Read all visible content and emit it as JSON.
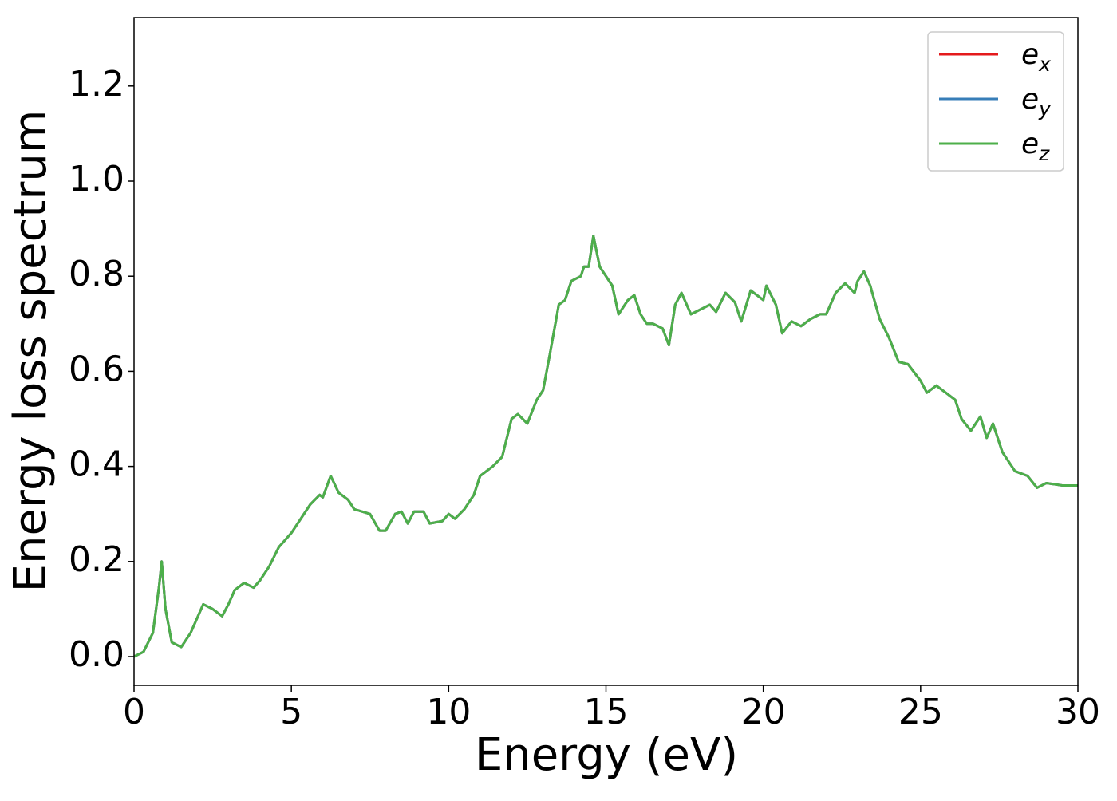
{
  "chart_data": {
    "type": "line",
    "xlabel": "Energy (eV)",
    "ylabel": "Energy loss spectrum",
    "xlim": [
      0,
      30
    ],
    "ylim": [
      -0.0604,
      1.344
    ],
    "xticks": [
      0,
      5,
      10,
      15,
      20,
      25,
      30
    ],
    "yticks": [
      {
        "value": 0,
        "label": "0.0"
      },
      0.2,
      0.4,
      0.6,
      0.8,
      {
        "value": 1,
        "label": "1.0"
      },
      1.2
    ],
    "legend": "upper right",
    "x": [
      0,
      0.3,
      0.6,
      0.8,
      0.88,
      1.0,
      1.2,
      1.5,
      1.8,
      2.2,
      2.5,
      2.8,
      3.0,
      3.2,
      3.5,
      3.8,
      4.0,
      4.3,
      4.6,
      5.0,
      5.3,
      5.6,
      5.9,
      6.0,
      6.25,
      6.5,
      6.8,
      7.0,
      7.5,
      7.8,
      8.0,
      8.3,
      8.5,
      8.7,
      8.9,
      9.2,
      9.4,
      9.8,
      10.0,
      10.2,
      10.5,
      10.8,
      11.0,
      11.4,
      11.7,
      12.0,
      12.2,
      12.5,
      12.8,
      13.0,
      13.2,
      13.5,
      13.7,
      13.9,
      14.2,
      14.3,
      14.45,
      14.6,
      14.8,
      15.0,
      15.2,
      15.4,
      15.7,
      15.9,
      16.1,
      16.3,
      16.5,
      16.8,
      17.0,
      17.2,
      17.4,
      17.7,
      18.0,
      18.3,
      18.5,
      18.8,
      19.1,
      19.3,
      19.6,
      20.0,
      20.1,
      20.4,
      20.6,
      20.9,
      21.2,
      21.5,
      21.8,
      22.0,
      22.3,
      22.6,
      22.9,
      23.0,
      23.2,
      23.4,
      23.7,
      24.0,
      24.3,
      24.6,
      25.0,
      25.2,
      25.5,
      25.8,
      26.1,
      26.3,
      26.6,
      26.9,
      27.1,
      27.3,
      27.6,
      28.0,
      28.4,
      28.7,
      29.0,
      29.5,
      30.0
    ],
    "series": [
      {
        "name": "e_x",
        "color": "#e41a1c",
        "values": [
          0,
          0.01,
          0.05,
          0.15,
          0.2,
          0.1,
          0.03,
          0.02,
          0.05,
          0.11,
          0.1,
          0.085,
          0.11,
          0.14,
          0.155,
          0.145,
          0.16,
          0.19,
          0.23,
          0.26,
          0.29,
          0.32,
          0.34,
          0.335,
          0.38,
          0.345,
          0.33,
          0.31,
          0.3,
          0.265,
          0.265,
          0.3,
          0.305,
          0.28,
          0.305,
          0.305,
          0.28,
          0.285,
          0.3,
          0.29,
          0.31,
          0.34,
          0.38,
          0.4,
          0.42,
          0.5,
          0.51,
          0.49,
          0.54,
          0.56,
          0.63,
          0.74,
          0.75,
          0.79,
          0.8,
          0.82,
          0.82,
          0.885,
          0.82,
          0.8,
          0.78,
          0.72,
          0.75,
          0.76,
          0.72,
          0.7,
          0.7,
          0.69,
          0.655,
          0.74,
          0.765,
          0.72,
          0.73,
          0.74,
          0.725,
          0.765,
          0.745,
          0.705,
          0.77,
          0.75,
          0.78,
          0.74,
          0.68,
          0.705,
          0.695,
          0.71,
          0.72,
          0.72,
          0.765,
          0.785,
          0.765,
          0.79,
          0.81,
          0.78,
          0.71,
          0.67,
          0.62,
          0.615,
          0.58,
          0.555,
          0.57,
          0.555,
          0.54,
          0.5,
          0.475,
          0.505,
          0.46,
          0.49,
          0.43,
          0.39,
          0.38,
          0.355,
          0.365,
          0.36,
          0.36
        ]
      },
      {
        "name": "e_y",
        "color": "#377eb8",
        "values": [
          0,
          0.01,
          0.05,
          0.15,
          0.2,
          0.1,
          0.03,
          0.02,
          0.05,
          0.11,
          0.1,
          0.085,
          0.11,
          0.14,
          0.155,
          0.145,
          0.16,
          0.19,
          0.23,
          0.26,
          0.29,
          0.32,
          0.34,
          0.335,
          0.38,
          0.345,
          0.33,
          0.31,
          0.3,
          0.265,
          0.265,
          0.3,
          0.305,
          0.28,
          0.305,
          0.305,
          0.28,
          0.285,
          0.3,
          0.29,
          0.31,
          0.34,
          0.38,
          0.4,
          0.42,
          0.5,
          0.51,
          0.49,
          0.54,
          0.56,
          0.63,
          0.74,
          0.75,
          0.79,
          0.8,
          0.82,
          0.82,
          0.885,
          0.82,
          0.8,
          0.78,
          0.72,
          0.75,
          0.76,
          0.72,
          0.7,
          0.7,
          0.69,
          0.655,
          0.74,
          0.765,
          0.72,
          0.73,
          0.74,
          0.725,
          0.765,
          0.745,
          0.705,
          0.77,
          0.75,
          0.78,
          0.74,
          0.68,
          0.705,
          0.695,
          0.71,
          0.72,
          0.72,
          0.765,
          0.785,
          0.765,
          0.79,
          0.81,
          0.78,
          0.71,
          0.67,
          0.62,
          0.615,
          0.58,
          0.555,
          0.57,
          0.555,
          0.54,
          0.5,
          0.475,
          0.505,
          0.46,
          0.49,
          0.43,
          0.39,
          0.38,
          0.355,
          0.365,
          0.36,
          0.36
        ]
      },
      {
        "name": "e_z",
        "color": "#4daf4a",
        "values": [
          0,
          0.01,
          0.05,
          0.15,
          0.2,
          0.1,
          0.03,
          0.02,
          0.05,
          0.11,
          0.1,
          0.085,
          0.11,
          0.14,
          0.155,
          0.145,
          0.16,
          0.19,
          0.23,
          0.26,
          0.29,
          0.32,
          0.34,
          0.335,
          0.38,
          0.345,
          0.33,
          0.31,
          0.3,
          0.265,
          0.265,
          0.3,
          0.305,
          0.28,
          0.305,
          0.305,
          0.28,
          0.285,
          0.3,
          0.29,
          0.31,
          0.34,
          0.38,
          0.4,
          0.42,
          0.5,
          0.51,
          0.49,
          0.54,
          0.56,
          0.63,
          0.74,
          0.75,
          0.79,
          0.8,
          0.82,
          0.82,
          0.885,
          0.82,
          0.8,
          0.78,
          0.72,
          0.75,
          0.76,
          0.72,
          0.7,
          0.7,
          0.69,
          0.655,
          0.74,
          0.765,
          0.72,
          0.73,
          0.74,
          0.725,
          0.765,
          0.745,
          0.705,
          0.77,
          0.75,
          0.78,
          0.74,
          0.68,
          0.705,
          0.695,
          0.71,
          0.72,
          0.72,
          0.765,
          0.785,
          0.765,
          0.79,
          0.81,
          0.78,
          0.71,
          0.67,
          0.62,
          0.615,
          0.58,
          0.555,
          0.57,
          0.555,
          0.54,
          0.5,
          0.475,
          0.505,
          0.46,
          0.49,
          0.43,
          0.39,
          0.38,
          0.355,
          0.365,
          0.36,
          0.36
        ]
      }
    ]
  }
}
